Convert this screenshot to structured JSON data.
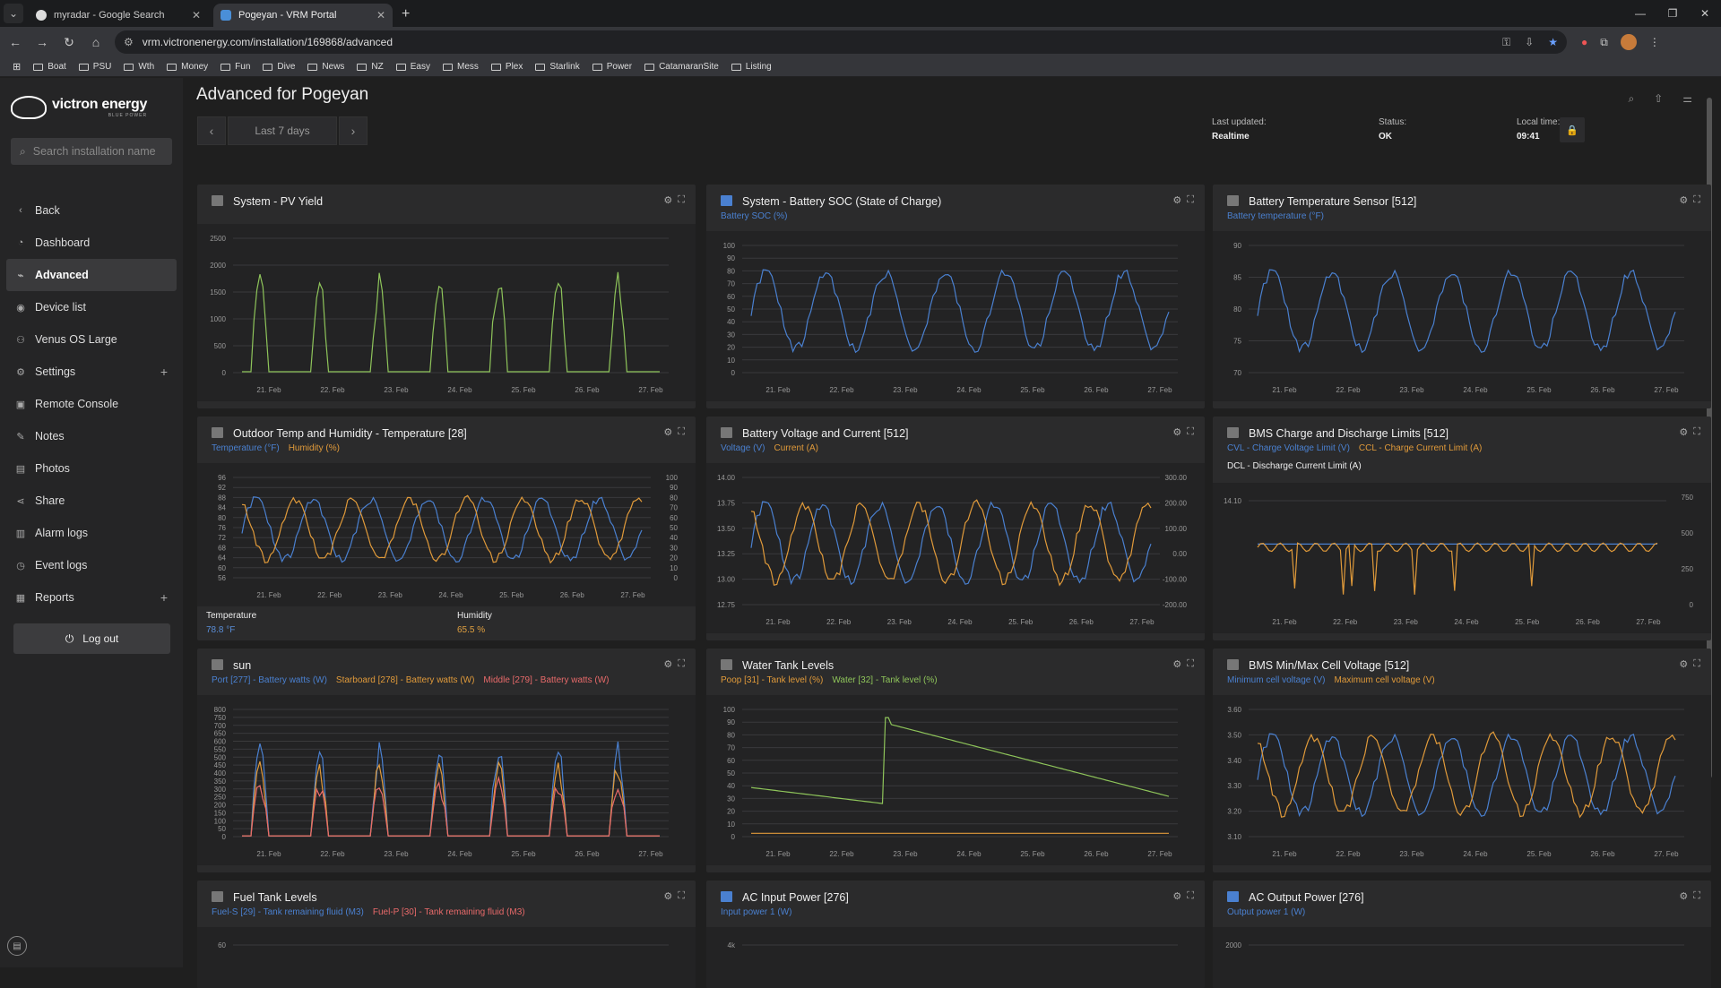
{
  "browser": {
    "tabs": [
      {
        "title": "myradar - Google Search",
        "active": false
      },
      {
        "title": "Pogeyan - VRM Portal",
        "active": true
      }
    ],
    "url": "vrm.victronenergy.com/installation/169868/advanced",
    "bookmarks": [
      "Boat",
      "PSU",
      "Wth",
      "Money",
      "Fun",
      "Dive",
      "News",
      "NZ",
      "Easy",
      "Mess",
      "Plex",
      "Starlink",
      "Power",
      "CatamaranSite",
      "Listing"
    ]
  },
  "sidebar": {
    "logo": "victron energy",
    "logo_sub": "BLUE POWER",
    "search_placeholder": "Search installation name",
    "items": [
      {
        "label": "Back",
        "icon": "chevron-left-icon"
      },
      {
        "label": "Dashboard",
        "icon": "dashboard-icon"
      },
      {
        "label": "Advanced",
        "icon": "advanced-icon",
        "active": true
      },
      {
        "label": "Device list",
        "icon": "device-icon"
      },
      {
        "label": "Venus OS Large",
        "icon": "venus-icon"
      },
      {
        "label": "Settings",
        "icon": "gear-icon",
        "plus": true
      },
      {
        "label": "Remote Console",
        "icon": "console-icon"
      },
      {
        "label": "Notes",
        "icon": "notes-icon"
      },
      {
        "label": "Photos",
        "icon": "photos-icon"
      },
      {
        "label": "Share",
        "icon": "share-icon"
      },
      {
        "label": "Alarm logs",
        "icon": "alarm-icon"
      },
      {
        "label": "Event logs",
        "icon": "event-icon"
      },
      {
        "label": "Reports",
        "icon": "reports-icon",
        "plus": true
      }
    ],
    "logout": "Log out"
  },
  "header": {
    "title": "Advanced for Pogeyan",
    "range": "Last 7 days",
    "last_updated_label": "Last updated:",
    "last_updated": "Realtime",
    "status_label": "Status:",
    "status": "OK",
    "local_time_label": "Local time:",
    "local_time": "09:41"
  },
  "colors": {
    "blue": "#4a80d0",
    "orange": "#e09a3a",
    "green": "#8ec45a",
    "red": "#e86a6a",
    "white": "#ffffff"
  },
  "dates": [
    "21. Feb",
    "22. Feb",
    "23. Feb",
    "24. Feb",
    "25. Feb",
    "26. Feb",
    "27. Feb"
  ],
  "cards": [
    {
      "title": "System - PV Yield",
      "legend": [],
      "yticks": [
        "2500",
        "2000",
        "1500",
        "1000",
        "500",
        "0"
      ]
    },
    {
      "title": "System - Battery SOC (State of Charge)",
      "legend": [
        {
          "text": "Battery SOC (%)",
          "color": "#4a80d0"
        }
      ],
      "yticks": [
        "100",
        "90",
        "80",
        "70",
        "60",
        "50",
        "40",
        "30",
        "20",
        "10",
        "0"
      ]
    },
    {
      "title": "Battery Temperature Sensor [512]",
      "legend": [
        {
          "text": "Battery temperature (°F)",
          "color": "#4a80d0"
        }
      ],
      "yticks": [
        "90",
        "85",
        "80",
        "75",
        "70"
      ]
    },
    {
      "title": "Outdoor Temp and Humidity - Temperature [28]",
      "legend": [
        {
          "text": "Temperature (°F)",
          "color": "#4a80d0"
        },
        {
          "text": "Humidity (%)",
          "color": "#e09a3a"
        }
      ],
      "yticks": [
        "96",
        "92",
        "88",
        "84",
        "80",
        "76",
        "72",
        "68",
        "64",
        "60",
        "56"
      ],
      "yticks_right": [
        "100",
        "90",
        "80",
        "70",
        "60",
        "50",
        "40",
        "30",
        "20",
        "10",
        "0"
      ],
      "readout": {
        "temp_label": "Temperature",
        "temp": "78.8 °F",
        "hum_label": "Humidity",
        "hum": "65.5 %"
      }
    },
    {
      "title": "Battery Voltage and Current [512]",
      "legend": [
        {
          "text": "Voltage (V)",
          "color": "#4a80d0"
        },
        {
          "text": "Current (A)",
          "color": "#e09a3a"
        }
      ],
      "yticks": [
        "14.00",
        "13.75",
        "13.50",
        "13.25",
        "13.00",
        "12.75"
      ],
      "yticks_right": [
        "300.00",
        "200.00",
        "100.00",
        "0.00",
        "-100.00",
        "-200.00"
      ]
    },
    {
      "title": "BMS Charge and Discharge Limits [512]",
      "legend": [
        {
          "text": "CVL - Charge Voltage Limit (V)",
          "color": "#4a80d0"
        },
        {
          "text": "CCL - Charge Current Limit (A)",
          "color": "#e09a3a"
        }
      ],
      "legend2": "DCL - Discharge Current Limit (A)",
      "yticks": [
        "14.10"
      ],
      "yticks_right": [
        "750",
        "500",
        "250",
        "0"
      ]
    },
    {
      "title": "sun",
      "legend": [
        {
          "text": "Port [277] - Battery watts (W)",
          "color": "#4a80d0"
        },
        {
          "text": "Starboard [278] - Battery watts (W)",
          "color": "#e09a3a"
        },
        {
          "text": "Middle [279] - Battery watts (W)",
          "color": "#e86a6a"
        }
      ],
      "yticks": [
        "800",
        "750",
        "700",
        "650",
        "600",
        "550",
        "500",
        "450",
        "400",
        "350",
        "300",
        "250",
        "200",
        "150",
        "100",
        "50",
        "0"
      ]
    },
    {
      "title": "Water Tank Levels",
      "legend": [
        {
          "text": "Poop [31] - Tank level (%)",
          "color": "#e09a3a"
        },
        {
          "text": "Water [32] - Tank level (%)",
          "color": "#8ec45a"
        }
      ],
      "yticks": [
        "100",
        "90",
        "80",
        "70",
        "60",
        "50",
        "40",
        "30",
        "20",
        "10",
        "0"
      ]
    },
    {
      "title": "BMS Min/Max Cell Voltage [512]",
      "legend": [
        {
          "text": "Minimum cell voltage (V)",
          "color": "#4a80d0"
        },
        {
          "text": "Maximum cell voltage (V)",
          "color": "#e09a3a"
        }
      ],
      "yticks": [
        "3.60",
        "3.50",
        "3.40",
        "3.30",
        "3.20",
        "3.10"
      ]
    },
    {
      "title": "Fuel Tank Levels",
      "legend": [
        {
          "text": "Fuel-S [29] - Tank remaining fluid (M3)",
          "color": "#4a80d0"
        },
        {
          "text": "Fuel-P [30] - Tank remaining fluid (M3)",
          "color": "#e86a6a"
        }
      ],
      "yticks": [
        "60"
      ]
    },
    {
      "title": "AC Input Power [276]",
      "legend": [
        {
          "text": "Input power 1 (W)",
          "color": "#4a80d0"
        }
      ],
      "yticks": [
        "4k"
      ]
    },
    {
      "title": "AC Output Power [276]",
      "legend": [
        {
          "text": "Output power 1 (W)",
          "color": "#4a80d0"
        }
      ],
      "yticks": [
        "2000"
      ]
    }
  ]
}
